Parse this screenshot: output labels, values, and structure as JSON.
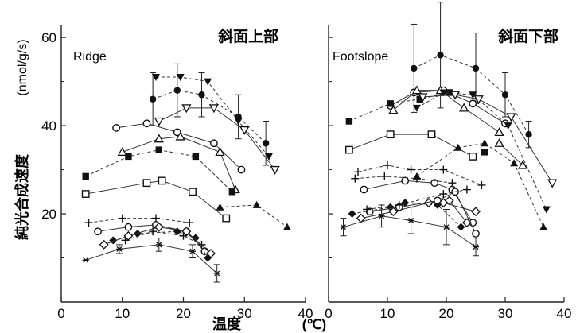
{
  "x_title": "温度",
  "x_unit": "(℃)",
  "y_title": "純光合成速度",
  "y_unit": "(nmol/g/s)",
  "chart_data": [
    {
      "type": "line",
      "title": "斜面上部",
      "panel_label": "Ridge",
      "xlim": [
        0,
        40
      ],
      "ylim": [
        0,
        62
      ],
      "xticks": [
        0,
        10,
        20,
        30,
        40
      ],
      "yticks": [
        20,
        40,
        60
      ],
      "ytick_labels": [
        "20",
        "40",
        "60"
      ],
      "series": [
        {
          "marker": "filled-circle",
          "x": [
            15,
            19,
            23,
            29,
            33.5
          ],
          "y": [
            46,
            48,
            47,
            42,
            36
          ],
          "err": [
            6,
            6,
            5,
            5,
            5
          ]
        },
        {
          "marker": "filled-inv-triangle",
          "x": [
            15.5,
            19.5,
            24,
            29,
            34
          ],
          "y": [
            51,
            51,
            50,
            41,
            33
          ]
        },
        {
          "marker": "open-inv-triangle",
          "x": [
            16,
            20.5,
            25,
            30,
            35
          ],
          "y": [
            41,
            44,
            44,
            39,
            30
          ]
        },
        {
          "marker": "open-circle",
          "x": [
            9,
            14,
            19,
            25,
            29.5
          ],
          "y": [
            39.5,
            40.5,
            38.5,
            36,
            30
          ]
        },
        {
          "marker": "open-triangle",
          "x": [
            10,
            16,
            19.5,
            26,
            28.5
          ],
          "y": [
            34,
            37,
            37.5,
            34,
            25.5
          ]
        },
        {
          "marker": "filled-square",
          "x": [
            4,
            11,
            16,
            22,
            28
          ],
          "y": [
            28.5,
            33,
            34.5,
            33,
            25
          ]
        },
        {
          "marker": "open-square",
          "x": [
            4,
            14,
            16.5,
            21.5,
            27
          ],
          "y": [
            24.5,
            27,
            27.5,
            25,
            19
          ]
        },
        {
          "marker": "filled-triangle",
          "x": [
            26,
            32,
            37
          ],
          "y": [
            21.5,
            22,
            17
          ]
        },
        {
          "marker": "plus",
          "x": [
            4.5,
            10,
            15.5,
            21
          ],
          "y": [
            18,
            19,
            19,
            18
          ]
        },
        {
          "marker": "open-circle",
          "x": [
            6,
            11,
            15.5,
            20.5,
            23.5
          ],
          "y": [
            16,
            17,
            17.5,
            16,
            11.5
          ]
        },
        {
          "marker": "filled-diamond",
          "x": [
            8.5,
            12.5,
            19,
            22,
            24
          ],
          "y": [
            14,
            15.5,
            16,
            14.5,
            10
          ]
        },
        {
          "marker": "open-diamond",
          "x": [
            7,
            11,
            16,
            20.5,
            24.5
          ],
          "y": [
            13,
            15,
            17,
            16,
            11
          ]
        },
        {
          "marker": "plus",
          "x": [
            10.5,
            15,
            20,
            23
          ],
          "y": [
            14,
            16,
            15,
            13
          ]
        },
        {
          "marker": "star",
          "x": [
            4,
            9.5,
            16,
            21.5,
            25.5
          ],
          "y": [
            9.5,
            12,
            13,
            11.5,
            6.5
          ],
          "err": [
            0,
            1,
            1.5,
            1.5,
            2
          ]
        }
      ]
    },
    {
      "type": "line",
      "title": "斜面下部",
      "panel_label": "Footslope",
      "xlim": [
        0,
        40
      ],
      "ylim": [
        0,
        62
      ],
      "xticks": [
        0,
        10,
        20,
        30,
        40
      ],
      "yticks": [
        20,
        40,
        60
      ],
      "ytick_labels": [
        "",
        "",
        ""
      ],
      "series": [
        {
          "marker": "filled-circle",
          "x": [
            14.5,
            19,
            25,
            30,
            34
          ],
          "y": [
            53,
            56,
            53,
            47,
            38
          ],
          "err": [
            10,
            12,
            8,
            5,
            3
          ]
        },
        {
          "marker": "open-circle",
          "x": [
            10.5,
            14.5,
            19.5,
            24.5,
            30
          ],
          "y": [
            44.5,
            47.5,
            48,
            45,
            40.5
          ]
        },
        {
          "marker": "filled-square",
          "x": [
            3.5,
            10.5,
            15.5,
            20.5
          ],
          "y": [
            41,
            45,
            46,
            47.5
          ]
        },
        {
          "marker": "open-triangle",
          "x": [
            11,
            15,
            19,
            23,
            29
          ],
          "y": [
            43.5,
            48,
            48,
            44,
            38.5
          ]
        },
        {
          "marker": "filled-inv-triangle",
          "x": [
            15,
            19.5,
            24.5,
            30.5,
            37
          ],
          "y": [
            44,
            47.5,
            47,
            40,
            21
          ]
        },
        {
          "marker": "open-inv-triangle",
          "x": [
            16,
            21.5,
            25.5,
            31,
            38
          ],
          "y": [
            46.5,
            47,
            46,
            42,
            27
          ]
        },
        {
          "marker": "open-square",
          "x": [
            3.5,
            10.5,
            17.5,
            24.5
          ],
          "y": [
            34.5,
            38,
            38,
            33
          ]
        },
        {
          "marker": "filled-triangle",
          "x": [
            15,
            22,
            26.5,
            31.5,
            36.5
          ],
          "y": [
            28.5,
            35,
            36,
            31.5,
            17
          ]
        },
        {
          "marker": "open-triangle",
          "x": [
            29,
            33
          ],
          "y": [
            36,
            31
          ]
        },
        {
          "marker": "filled-square",
          "x": [
            26.5
          ],
          "y": [
            34
          ]
        },
        {
          "marker": "plus",
          "x": [
            5,
            10,
            14,
            19.5,
            26
          ],
          "y": [
            29.5,
            31,
            30,
            30,
            26.5
          ]
        },
        {
          "marker": "open-circle",
          "x": [
            6,
            13,
            18,
            21,
            24.5
          ],
          "y": [
            25.5,
            27.5,
            27,
            25.5,
            18
          ]
        },
        {
          "marker": "plus",
          "x": [
            4.5,
            9.5,
            15,
            21
          ],
          "y": [
            28,
            28.5,
            28,
            27
          ]
        },
        {
          "marker": "filled-diamond",
          "x": [
            4,
            10.5,
            13,
            18.5,
            22.5
          ],
          "y": [
            20,
            21.5,
            22.5,
            22,
            17
          ]
        },
        {
          "marker": "open-diamond",
          "x": [
            5.5,
            11,
            17,
            20.5,
            23.5
          ],
          "y": [
            19,
            20.5,
            22.5,
            23,
            18
          ]
        },
        {
          "marker": "open-circle",
          "x": [
            7,
            12,
            18.5,
            21.5,
            25
          ],
          "y": [
            20.5,
            21.5,
            23,
            25,
            15.5
          ]
        },
        {
          "marker": "plus",
          "x": [
            6.5,
            12,
            19.5,
            23.5
          ],
          "y": [
            21,
            22,
            24.5,
            25.5
          ]
        },
        {
          "marker": "open-diamond",
          "x": [
            19.5,
            25
          ],
          "y": [
            22.5,
            20.5
          ]
        },
        {
          "marker": "star",
          "x": [
            2.5,
            9,
            14,
            20,
            25
          ],
          "y": [
            17,
            19.5,
            18.5,
            17,
            12.5
          ],
          "err": [
            2,
            2.5,
            3,
            4,
            2
          ]
        }
      ]
    }
  ]
}
